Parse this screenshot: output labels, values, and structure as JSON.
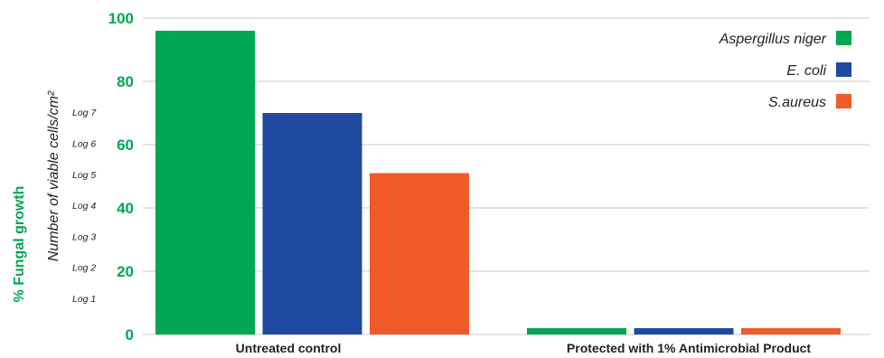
{
  "chart_data": {
    "type": "bar",
    "categories": [
      "Untreated control",
      "Protected with 1% Antimicrobial Product"
    ],
    "series": [
      {
        "name": "Aspergillus niger",
        "color": "#00a651",
        "values": [
          96,
          2
        ]
      },
      {
        "name": "E. coli",
        "color": "#1f4aa0",
        "values": [
          70,
          2
        ]
      },
      {
        "name": "S.aureus",
        "color": "#f15a29",
        "values": [
          51,
          2
        ]
      }
    ],
    "ylabel": "% Fungal growth",
    "ylabel_secondary": "Number of viable cells/cm²",
    "ylim": [
      0,
      100
    ],
    "yticks": [
      "0",
      "20",
      "40",
      "60",
      "80",
      "100"
    ],
    "log_ticks": [
      "Log 1",
      "Log 2",
      "Log 3",
      "Log 4",
      "Log 5",
      "Log 6",
      "Log 7"
    ],
    "grid": true,
    "legend": "top-right",
    "accent_color": "#00a651"
  }
}
